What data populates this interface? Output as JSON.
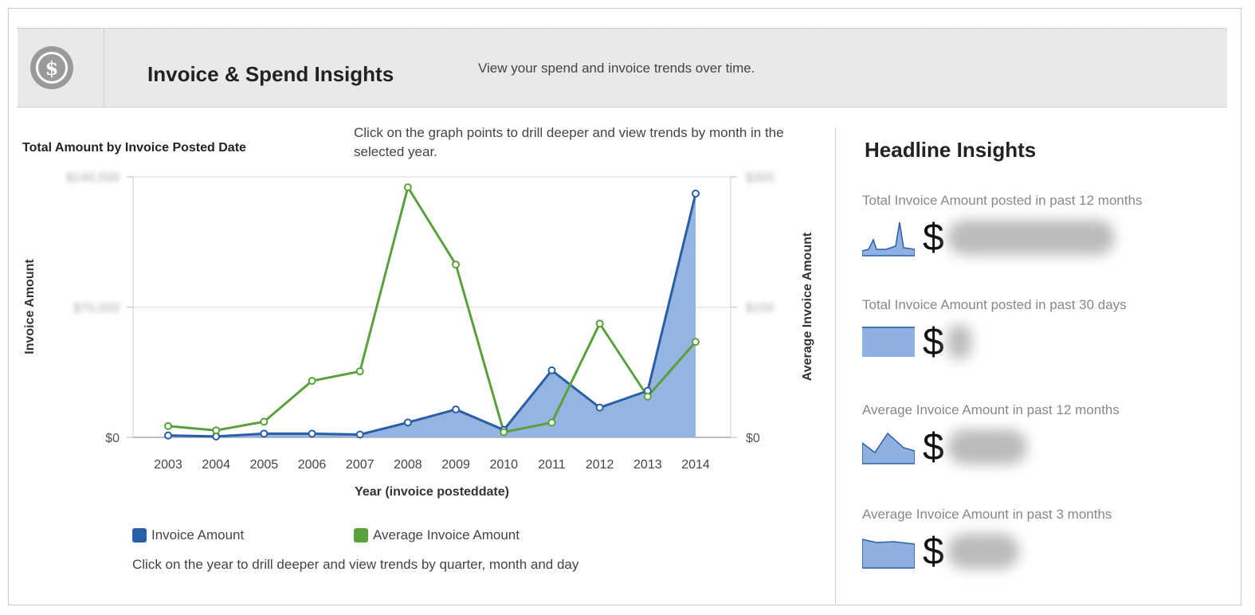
{
  "header": {
    "icon": "dollar-circle-icon",
    "title": "Invoice & Spend Insights",
    "subtitle": "View your spend and invoice trends over time."
  },
  "chart_panel": {
    "title": "Total Amount by Invoice Posted Date",
    "hint": "Click on the graph points to drill deeper and view trends by month in the selected year.",
    "footer": "Click on the year to drill deeper and view trends by quarter, month and day"
  },
  "chart_data": {
    "type": "line",
    "title": "Total Amount by Invoice Posted Date",
    "xlabel": "Year (invoice posteddate)",
    "ylabel": "Invoice Amount",
    "y2label": "Average Invoice Amount",
    "categories": [
      "2003",
      "2004",
      "2005",
      "2006",
      "2007",
      "2008",
      "2009",
      "2010",
      "2011",
      "2012",
      "2013",
      "2014"
    ],
    "ylim": [
      0,
      140000
    ],
    "y2lim": [
      0,
      300
    ],
    "yticks": [
      "$0",
      "$70,000",
      "$140,000"
    ],
    "y2ticks": [
      "$0",
      "$150",
      "$300"
    ],
    "grid": true,
    "legend": "bottom",
    "series": [
      {
        "name": "Invoice Amount",
        "axis": "left",
        "style": "area",
        "color": "#2a5ea8",
        "fill": "#8fb0e0",
        "values": [
          1000,
          500,
          2000,
          2000,
          1500,
          8000,
          15000,
          4000,
          36000,
          16000,
          25000,
          131000
        ]
      },
      {
        "name": "Average Invoice Amount",
        "axis": "right",
        "style": "line",
        "color": "#5aa13e",
        "values": [
          13,
          8,
          18,
          65,
          76,
          288,
          199,
          6,
          17,
          131,
          47,
          110
        ]
      }
    ]
  },
  "insights": {
    "title": "Headline Insights",
    "items": [
      {
        "label": "Total Invoice Amount posted in past 12 months",
        "currency": "$",
        "spark": "peaks"
      },
      {
        "label": "Total Invoice Amount posted in past 30 days",
        "currency": "$",
        "spark": "flat"
      },
      {
        "label": "Average Invoice Amount in past 12 months",
        "currency": "$",
        "spark": "hill"
      },
      {
        "label": "Average Invoice Amount in past 3 months",
        "currency": "$",
        "spark": "declining"
      }
    ]
  }
}
